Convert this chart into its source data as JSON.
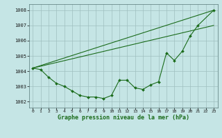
{
  "x": [
    0,
    1,
    2,
    3,
    4,
    5,
    6,
    7,
    8,
    9,
    10,
    11,
    12,
    13,
    14,
    15,
    16,
    17,
    18,
    19,
    20,
    21,
    22,
    23
  ],
  "series_main": [
    1004.2,
    1004.1,
    1003.6,
    1003.2,
    1003.0,
    1002.7,
    1002.4,
    1002.3,
    1002.3,
    1002.2,
    1002.4,
    1003.4,
    1003.4,
    1002.9,
    1002.8,
    1003.1,
    1003.3,
    1005.2,
    1004.7,
    1005.3,
    1006.3,
    1007.0,
    null,
    1008.0
  ],
  "line1_x": [
    0,
    23
  ],
  "line1_y": [
    1004.2,
    1008.0
  ],
  "line2_x": [
    0,
    23
  ],
  "line2_y": [
    1004.2,
    1007.0
  ],
  "line_color": "#1a6b1a",
  "bg_color": "#c5e5e5",
  "grid_color": "#9fbfbf",
  "xlabel": "Graphe pression niveau de la mer (hPa)",
  "ylim": [
    1001.6,
    1008.4
  ],
  "xlim": [
    -0.5,
    23.5
  ],
  "yticks": [
    1002,
    1003,
    1004,
    1005,
    1006,
    1007,
    1008
  ],
  "xticks": [
    0,
    1,
    2,
    3,
    4,
    5,
    6,
    7,
    8,
    9,
    10,
    11,
    12,
    13,
    14,
    15,
    16,
    17,
    18,
    19,
    20,
    21,
    22,
    23
  ],
  "ylabel_fontsize": 5.0,
  "xlabel_fontsize": 6.0,
  "tick_fontsize": 4.5,
  "figwidth": 3.2,
  "figheight": 2.0,
  "dpi": 100
}
